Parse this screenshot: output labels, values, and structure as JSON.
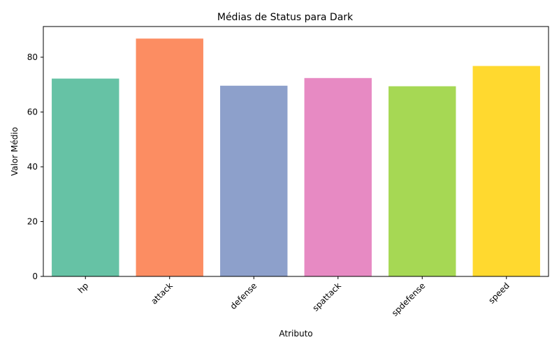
{
  "chart_data": {
    "type": "bar",
    "title": "Médias de Status para Dark",
    "xlabel": "Atributo",
    "ylabel": "Valor Médio",
    "categories": [
      "hp",
      "attack",
      "defense",
      "spattack",
      "spdefense",
      "speed"
    ],
    "values": [
      72.2,
      86.8,
      69.6,
      72.4,
      69.4,
      76.8
    ],
    "colors": [
      "#66c2a5",
      "#fc8d62",
      "#8da0cb",
      "#e78ac3",
      "#a6d854",
      "#ffd92f"
    ],
    "yticks": [
      0,
      20,
      40,
      60,
      80
    ],
    "ylim": [
      0,
      91.2
    ],
    "grid": false,
    "legend": "none"
  }
}
